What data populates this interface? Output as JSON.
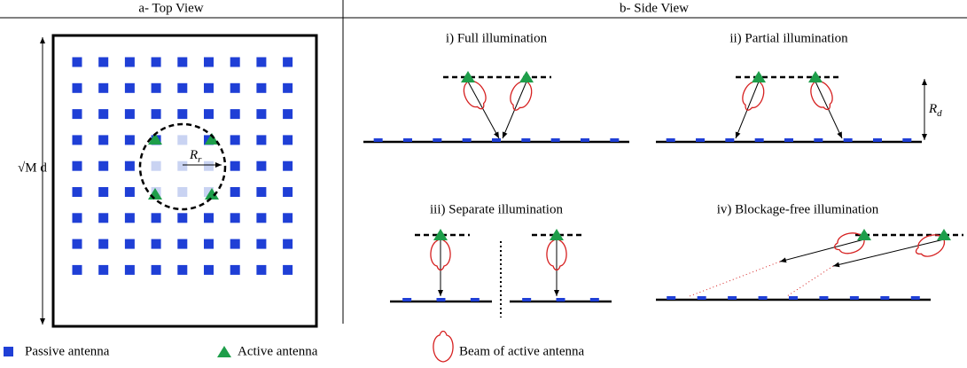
{
  "header": {
    "left": "a- Top View",
    "right": "b- Side View"
  },
  "top_view": {
    "side_label": "√M d",
    "radius_label": {
      "base": "R",
      "sub": "r"
    }
  },
  "side_view": {
    "panels": [
      {
        "title": "i) Full illumination"
      },
      {
        "title": "ii) Partial illumination",
        "height_label": {
          "base": "R",
          "sub": "d"
        }
      },
      {
        "title": "iii) Separate illumination"
      },
      {
        "title": "iv) Blockage-free illumination"
      }
    ]
  },
  "legend": {
    "items": [
      "Passive antenna",
      "Active antenna",
      "Beam of active antenna"
    ]
  }
}
